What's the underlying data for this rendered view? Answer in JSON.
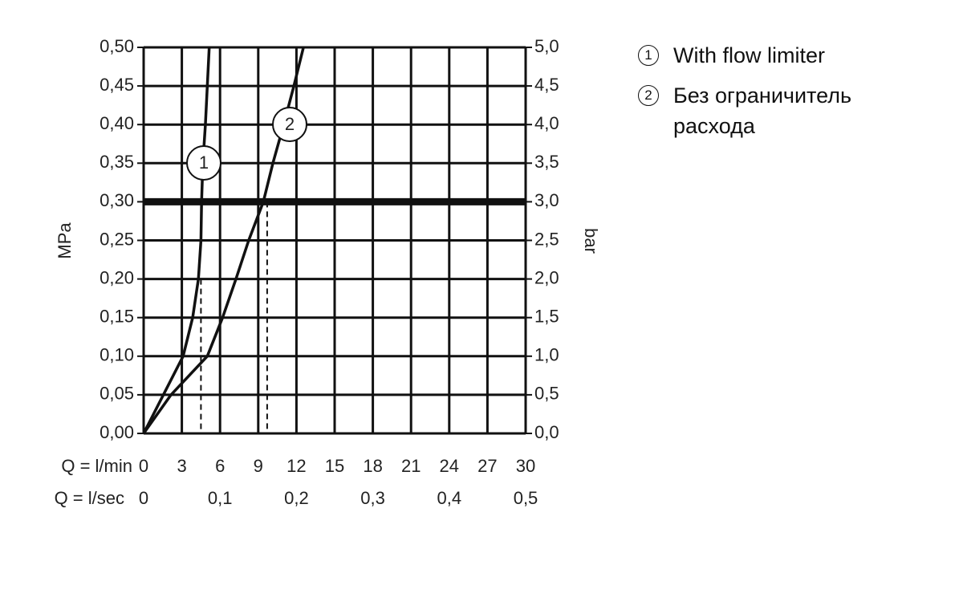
{
  "chart_data": {
    "type": "line",
    "xlabel": "Q = l/min",
    "x2label": "Q = l/sec",
    "ylabel": "MPa",
    "y2label": "bar",
    "xlim": [
      0,
      30
    ],
    "xticks": [
      0,
      3,
      6,
      9,
      12,
      15,
      18,
      21,
      24,
      27,
      30
    ],
    "x2lim": [
      0,
      0.5
    ],
    "x2ticks": [
      0,
      {
        "value": 0.1,
        "label": "0,1"
      },
      {
        "value": 0.2,
        "label": "0,2"
      },
      {
        "value": 0.3,
        "label": "0,3"
      },
      {
        "value": 0.4,
        "label": "0,4"
      },
      {
        "value": 0.5,
        "label": "0,5"
      }
    ],
    "ylim": [
      0,
      0.5
    ],
    "yticks": [
      {
        "value": 0,
        "label": "0,00"
      },
      {
        "value": 0.05,
        "label": "0,05"
      },
      {
        "value": 0.1,
        "label": "0,10"
      },
      {
        "value": 0.15,
        "label": "0,15"
      },
      {
        "value": 0.2,
        "label": "0,20"
      },
      {
        "value": 0.25,
        "label": "0,25"
      },
      {
        "value": 0.3,
        "label": "0,30"
      },
      {
        "value": 0.35,
        "label": "0,35"
      },
      {
        "value": 0.4,
        "label": "0,40"
      },
      {
        "value": 0.45,
        "label": "0,45"
      },
      {
        "value": 0.5,
        "label": "0,50"
      }
    ],
    "y2lim": [
      0,
      5
    ],
    "y2ticks": [
      {
        "value": 0,
        "label": "0,0"
      },
      {
        "value": 0.5,
        "label": "0,5"
      },
      {
        "value": 1,
        "label": "1,0"
      },
      {
        "value": 1.5,
        "label": "1,5"
      },
      {
        "value": 2,
        "label": "2,0"
      },
      {
        "value": 2.5,
        "label": "2,5"
      },
      {
        "value": 3,
        "label": "3,0"
      },
      {
        "value": 3.5,
        "label": "3,5"
      },
      {
        "value": 4,
        "label": "4,0"
      },
      {
        "value": 4.5,
        "label": "4,5"
      },
      {
        "value": 5,
        "label": "5,0"
      }
    ],
    "grid": true,
    "ref_line": 0.3,
    "markers": [
      {
        "x": 4.5,
        "y": 0.2
      },
      {
        "x": 9.7,
        "y": 0.3
      }
    ],
    "series": [
      {
        "name": "With flow limiter",
        "label": "1",
        "color": "#111111",
        "x": [
          0,
          3.1,
          3.85,
          4.3,
          4.5,
          4.55,
          4.65,
          4.85,
          5.0,
          5.15
        ],
        "values": [
          0,
          0.1,
          0.15,
          0.2,
          0.25,
          0.3,
          0.35,
          0.4,
          0.45,
          0.5
        ]
      },
      {
        "name": "Без ограничитель расхода",
        "label": "2",
        "color": "#111111",
        "x": [
          0,
          2.15,
          5.0,
          6.2,
          7.25,
          8.25,
          9.4,
          10.15,
          11.0,
          11.8,
          12.55
        ],
        "values": [
          0,
          0.05,
          0.1,
          0.15,
          0.2,
          0.25,
          0.3,
          0.35,
          0.4,
          0.45,
          0.5
        ]
      }
    ]
  }
}
